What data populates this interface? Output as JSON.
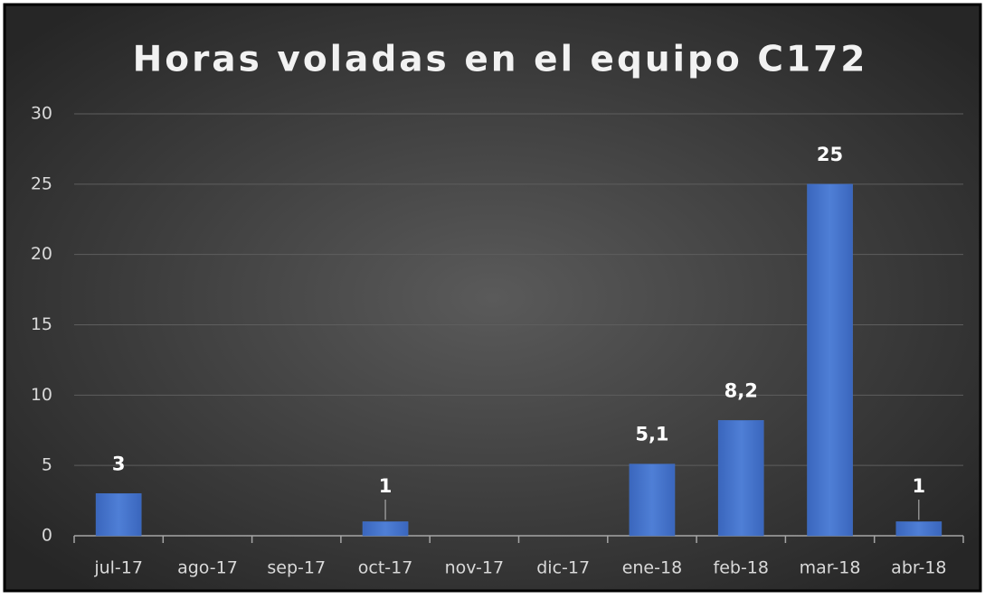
{
  "chart_data": {
    "type": "bar",
    "title": "Horas voladas en el equipo C172",
    "categories": [
      "jul-17",
      "ago-17",
      "sep-17",
      "oct-17",
      "nov-17",
      "dic-17",
      "ene-18",
      "feb-18",
      "mar-18",
      "abr-18"
    ],
    "values": [
      3,
      null,
      null,
      1,
      null,
      null,
      5.1,
      8.2,
      25,
      1
    ],
    "value_labels": [
      "3",
      null,
      null,
      "1",
      null,
      null,
      "5,1",
      "8,2",
      "25",
      "1"
    ],
    "color": "#4472c4",
    "ylim": [
      0,
      30
    ],
    "yticks": [
      0,
      5,
      10,
      15,
      20,
      25,
      30
    ],
    "grid": true
  }
}
